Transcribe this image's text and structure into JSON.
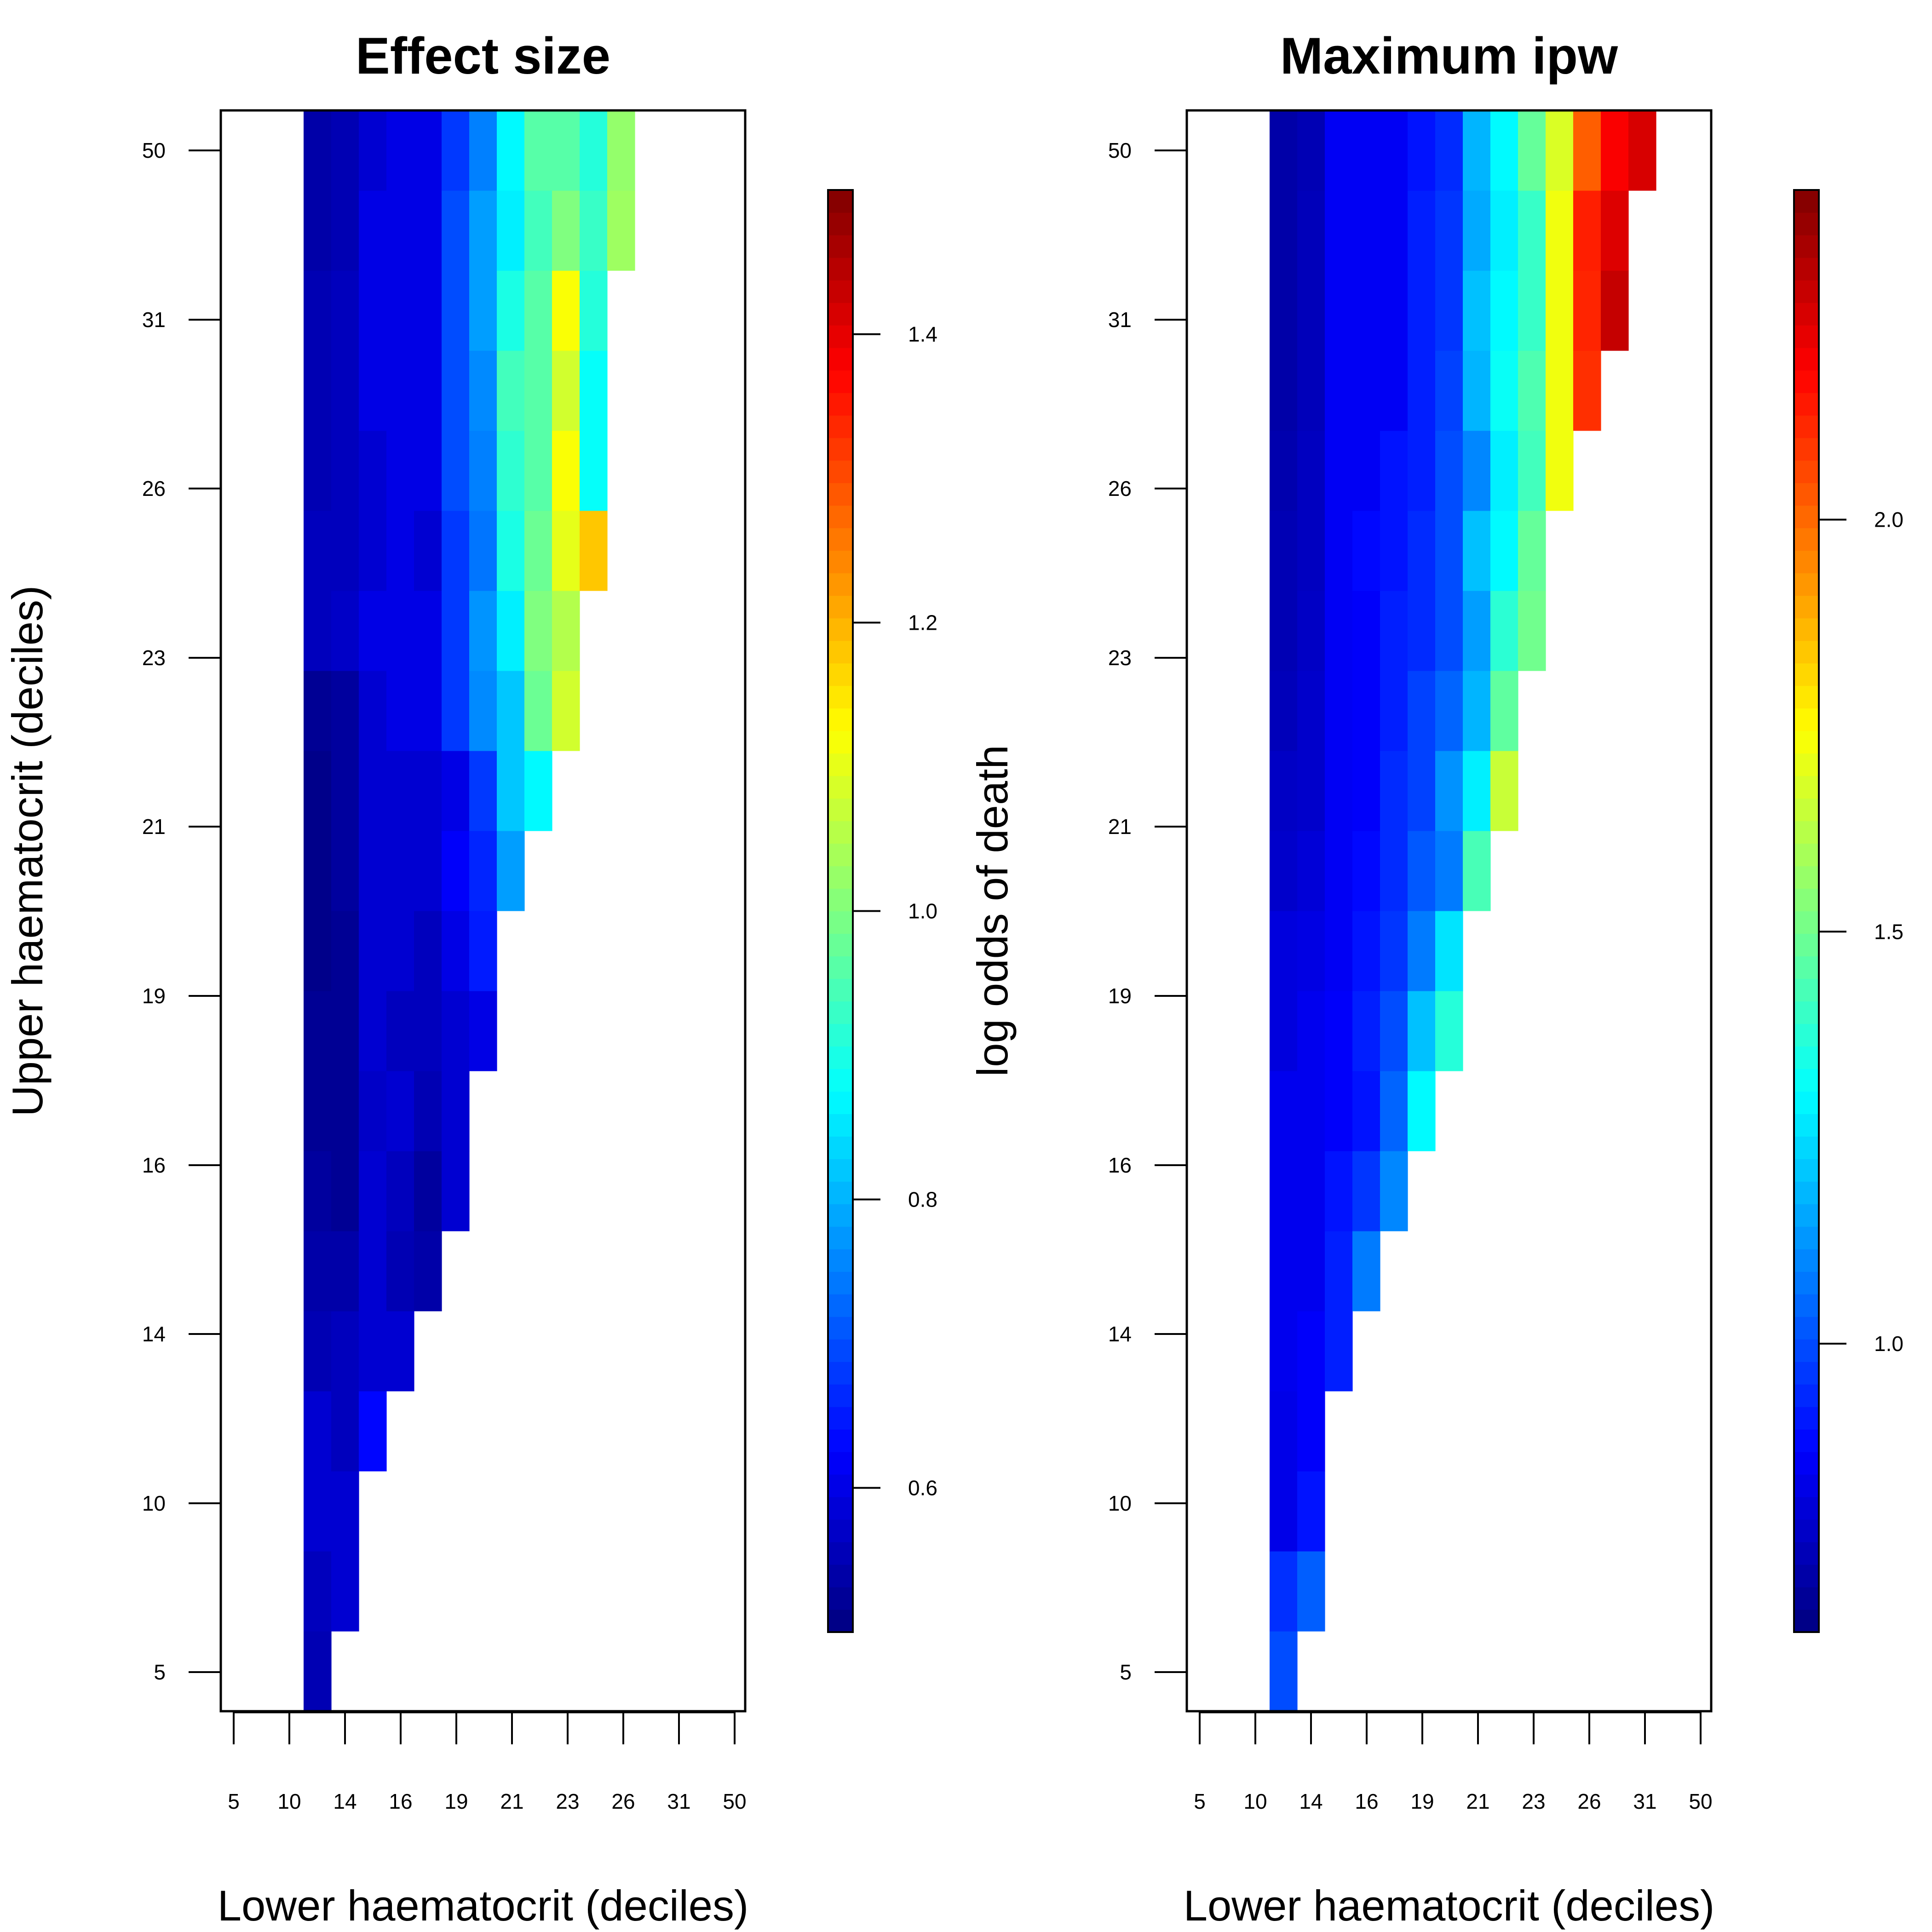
{
  "chart_data": [
    {
      "type": "heatmap",
      "title": "Effect size",
      "xlabel": "Lower haematocrit (deciles)",
      "ylabel": "Upper haematocrit (deciles)",
      "x_tick_labels": [
        "5",
        "10",
        "14",
        "16",
        "19",
        "21",
        "23",
        "26",
        "31",
        "50"
      ],
      "y_tick_labels": [
        "5",
        "10",
        "14",
        "16",
        "19",
        "21",
        "23",
        "26",
        "31",
        "50"
      ],
      "grid_columns": 19,
      "grid_rows": 20,
      "cells": [
        {
          "x": 3,
          "rows": [
            14,
            15,
            16,
            17,
            18,
            19,
            20,
            21,
            22,
            23,
            24,
            25,
            26,
            27,
            28,
            29,
            30,
            31,
            32,
            33
          ],
          "values": [
            0.55,
            0.56,
            0.58,
            0.58,
            0.55,
            0.54,
            0.53,
            0.52,
            0.52,
            0.51,
            0.51,
            0.51,
            0.52,
            0.56,
            0.56,
            0.55,
            0.55,
            0.55,
            0.54,
            0.54
          ]
        },
        {
          "x": 4,
          "rows": [
            15,
            16,
            17,
            18,
            19,
            20,
            21,
            22,
            23,
            24,
            25,
            26,
            27,
            28,
            29,
            30,
            31,
            32,
            33
          ],
          "values": [
            0.58,
            0.58,
            0.56,
            0.56,
            0.54,
            0.52,
            0.52,
            0.52,
            0.52,
            0.53,
            0.53,
            0.53,
            0.57,
            0.56,
            0.56,
            0.56,
            0.56,
            0.55,
            0.55
          ]
        },
        {
          "x": 5,
          "rows": [
            17,
            18,
            19,
            20,
            21,
            22,
            23,
            24,
            25,
            26,
            27,
            28,
            29,
            30,
            31,
            32,
            33
          ],
          "values": [
            0.63,
            0.58,
            0.58,
            0.58,
            0.57,
            0.58,
            0.58,
            0.58,
            0.58,
            0.58,
            0.6,
            0.58,
            0.58,
            0.6,
            0.6,
            0.6,
            0.58
          ]
        },
        {
          "x": 6,
          "rows": [
            18,
            19,
            20,
            21,
            22,
            23,
            24,
            25,
            26,
            27,
            28,
            29,
            30,
            31,
            32,
            33
          ],
          "values": [
            0.58,
            0.55,
            0.56,
            0.58,
            0.56,
            0.58,
            0.58,
            0.58,
            0.6,
            0.6,
            0.6,
            0.6,
            0.6,
            0.6,
            0.6,
            0.6
          ]
        },
        {
          "x": 7,
          "rows": [
            19,
            20,
            21,
            22,
            23,
            24,
            25,
            26,
            27,
            28,
            29,
            30,
            31,
            32,
            33
          ],
          "values": [
            0.54,
            0.53,
            0.55,
            0.56,
            0.56,
            0.58,
            0.58,
            0.6,
            0.6,
            0.58,
            0.6,
            0.6,
            0.6,
            0.6,
            0.6
          ]
        },
        {
          "x": 8,
          "rows": [
            20,
            21,
            22,
            23,
            24,
            25,
            26,
            27,
            28,
            29,
            30,
            31,
            32,
            33
          ],
          "values": [
            0.58,
            0.58,
            0.58,
            0.6,
            0.62,
            0.6,
            0.68,
            0.68,
            0.68,
            0.7,
            0.7,
            0.7,
            0.7,
            0.68
          ]
        },
        {
          "x": 9,
          "rows": [
            22,
            23,
            24,
            25,
            26,
            27,
            28,
            29,
            30,
            31,
            32,
            33
          ],
          "values": [
            0.6,
            0.65,
            0.66,
            0.68,
            0.76,
            0.77,
            0.74,
            0.75,
            0.76,
            0.78,
            0.78,
            0.75
          ]
        },
        {
          "x": 10,
          "rows": [
            24,
            25,
            26,
            27,
            28,
            29,
            30,
            31,
            32,
            33
          ],
          "values": [
            0.78,
            0.82,
            0.82,
            0.86,
            0.9,
            0.92,
            0.94,
            0.9,
            0.86,
            0.87
          ]
        },
        {
          "x": 11,
          "rows": [
            25,
            26,
            27,
            28,
            29,
            30,
            31,
            32,
            33
          ],
          "values": [
            0.87,
            0.98,
            1.0,
            0.98,
            0.96,
            0.96,
            0.96,
            0.94,
            0.96
          ]
        },
        {
          "x": 12,
          "rows": [
            26,
            27,
            28,
            29,
            30,
            31,
            32,
            33
          ],
          "values": [
            1.08,
            1.05,
            1.1,
            1.12,
            1.08,
            1.12,
            1.0,
            0.96
          ]
        },
        {
          "x": 13,
          "rows": [
            28,
            29,
            30,
            31,
            32,
            33
          ],
          "values": [
            1.18,
            0.88,
            0.88,
            0.91,
            0.93,
            0.91
          ]
        },
        {
          "x": 14,
          "rows": [
            32,
            33
          ],
          "values": [
            1.03,
            1.02
          ]
        }
      ],
      "zlim": [
        0.5,
        1.5
      ],
      "colorbar": {
        "ticks": [
          0.6,
          0.8,
          1.0,
          1.2,
          1.4
        ],
        "label": "log odds of death"
      },
      "colormap": "jet"
    },
    {
      "type": "heatmap",
      "title": "Maximum ipw",
      "xlabel": "Lower haematocrit (deciles)",
      "ylabel": "",
      "x_tick_labels": [
        "5",
        "10",
        "14",
        "16",
        "19",
        "21",
        "23",
        "26",
        "31",
        "50"
      ],
      "y_tick_labels": [
        "5",
        "10",
        "14",
        "16",
        "19",
        "21",
        "23",
        "26",
        "31",
        "50"
      ],
      "grid_columns": 19,
      "grid_rows": 20,
      "cells": [
        {
          "x": 3,
          "rows": [
            14,
            15,
            16,
            17,
            18,
            19,
            20,
            21,
            22,
            23,
            24,
            25,
            26,
            27,
            28,
            29,
            30,
            31,
            32,
            33
          ],
          "values": [
            1.0,
            0.95,
            0.83,
            0.83,
            0.84,
            0.84,
            0.84,
            0.84,
            0.81,
            0.81,
            0.78,
            0.77,
            0.75,
            0.74,
            0.74,
            0.73,
            0.72,
            0.72,
            0.72,
            0.72
          ]
        },
        {
          "x": 4,
          "rows": [
            15,
            16,
            17,
            18,
            19,
            20,
            21,
            22,
            23,
            24,
            25,
            26,
            27,
            28,
            29,
            30,
            31,
            32,
            33
          ],
          "values": [
            1.03,
            0.9,
            0.86,
            0.86,
            0.84,
            0.84,
            0.84,
            0.84,
            0.82,
            0.8,
            0.78,
            0.78,
            0.77,
            0.76,
            0.76,
            0.75,
            0.75,
            0.75,
            0.74
          ]
        },
        {
          "x": 5,
          "rows": [
            18,
            19,
            20,
            21,
            22,
            23,
            24,
            25,
            26,
            27,
            28,
            29,
            30,
            31,
            32,
            33
          ],
          "values": [
            0.92,
            0.92,
            0.9,
            0.86,
            0.86,
            0.85,
            0.85,
            0.85,
            0.85,
            0.85,
            0.85,
            0.85,
            0.85,
            0.85,
            0.85,
            0.85
          ]
        },
        {
          "x": 6,
          "rows": [
            19,
            20,
            21,
            22,
            23,
            24,
            25,
            26,
            27,
            28,
            29,
            30,
            31,
            32,
            33
          ],
          "values": [
            1.08,
            0.96,
            0.9,
            0.92,
            0.9,
            0.88,
            0.86,
            0.86,
            0.86,
            0.88,
            0.85,
            0.85,
            0.85,
            0.85,
            0.85
          ]
        },
        {
          "x": 7,
          "rows": [
            20,
            21,
            22,
            23,
            24,
            25,
            26,
            27,
            28,
            29,
            30,
            31,
            32,
            33
          ],
          "values": [
            1.1,
            1.04,
            1.0,
            0.96,
            0.94,
            0.94,
            0.92,
            0.92,
            0.9,
            0.9,
            0.85,
            0.85,
            0.85,
            0.85
          ]
        },
        {
          "x": 8,
          "rows": [
            21,
            22,
            23,
            24,
            25,
            26,
            27,
            28,
            29,
            30,
            31,
            32,
            33
          ],
          "values": [
            1.3,
            1.2,
            1.08,
            1.02,
            0.98,
            0.98,
            0.94,
            0.94,
            0.92,
            0.92,
            0.92,
            0.92,
            0.9
          ]
        },
        {
          "x": 9,
          "rows": [
            22,
            23,
            24,
            25,
            26,
            27,
            28,
            29,
            30,
            31,
            32,
            33
          ],
          "values": [
            1.37,
            1.26,
            1.08,
            1.12,
            1.04,
            1.0,
            1.0,
            1.0,
            0.98,
            0.96,
            0.96,
            0.94
          ]
        },
        {
          "x": 10,
          "rows": [
            24,
            25,
            26,
            27,
            28,
            29,
            30,
            31,
            32,
            33
          ],
          "values": [
            1.43,
            1.28,
            1.18,
            1.14,
            1.2,
            1.1,
            1.18,
            1.2,
            1.16,
            1.18
          ]
        },
        {
          "x": 11,
          "rows": [
            25,
            26,
            27,
            28,
            29,
            30,
            31,
            32,
            33
          ],
          "values": [
            1.65,
            1.47,
            1.38,
            1.3,
            1.28,
            1.32,
            1.3,
            1.28,
            1.3
          ]
        },
        {
          "x": 12,
          "rows": [
            27,
            28,
            29,
            30,
            31,
            32,
            33
          ],
          "values": [
            1.5,
            1.48,
            1.42,
            1.44,
            1.4,
            1.4,
            1.48
          ]
        },
        {
          "x": 13,
          "rows": [
            29,
            30,
            31,
            32,
            33
          ],
          "values": [
            1.72,
            1.72,
            1.72,
            1.72,
            1.68
          ]
        },
        {
          "x": 14,
          "rows": [
            30,
            31,
            32,
            33
          ],
          "values": [
            2.1,
            2.12,
            2.13,
            2.02
          ]
        },
        {
          "x": 15,
          "rows": [
            31,
            32,
            33
          ],
          "values": [
            2.28,
            2.24,
            2.19
          ]
        },
        {
          "x": 16,
          "rows": [
            33
          ],
          "values": [
            2.25
          ]
        }
      ],
      "zlim": [
        0.65,
        2.4
      ],
      "colorbar": {
        "ticks": [
          1.0,
          1.5,
          2.0
        ],
        "label": ""
      },
      "colormap": "jet"
    }
  ]
}
